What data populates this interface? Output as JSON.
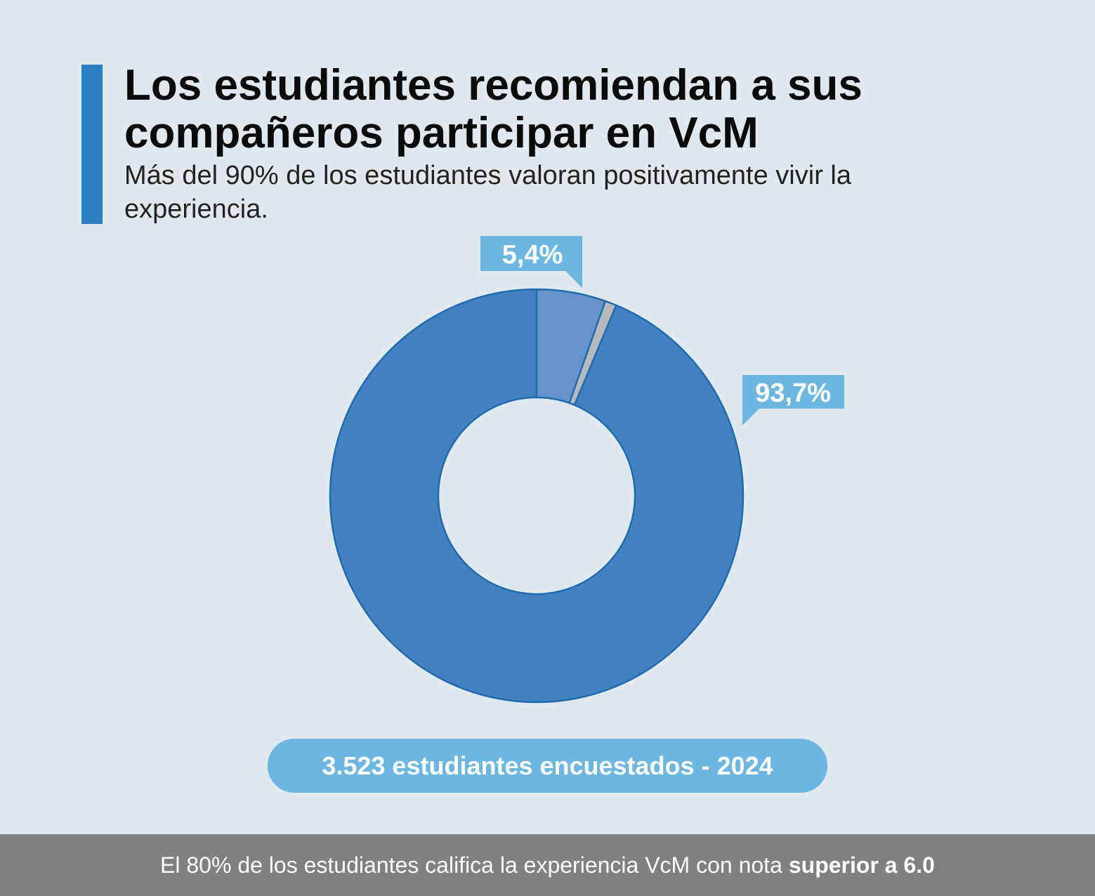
{
  "header": {
    "title": "Los estudiantes recomiendan a sus compañeros participar en VcM",
    "subtitle": "Más del 90% de los estudiantes valoran positivamente vivir la experiencia."
  },
  "chart_data": {
    "type": "donut",
    "segments": [
      {
        "value": 5.4,
        "label": "5,4%",
        "color": "#6893ca",
        "callout": "top"
      },
      {
        "value": 0.9,
        "label": "",
        "color": "#b7b9bb",
        "callout": "none"
      },
      {
        "value": 93.7,
        "label": "93,7%",
        "color": "#4381c1",
        "callout": "right"
      }
    ],
    "start_angle_deg": 0,
    "direction": "clockwise",
    "callout_color": "#6cb6e2",
    "outline_color": "#1f6cb0"
  },
  "survey": {
    "label": "3.523 estudiantes encuestados - 2024"
  },
  "footer": {
    "text": "El 80% de los estudiantes califica la experiencia VcM con nota",
    "emphasis": "superior a 6.0"
  },
  "colors": {
    "accent": "#2b80c4",
    "background": "#e1e9f0",
    "footer_bg": "#7f8181"
  }
}
